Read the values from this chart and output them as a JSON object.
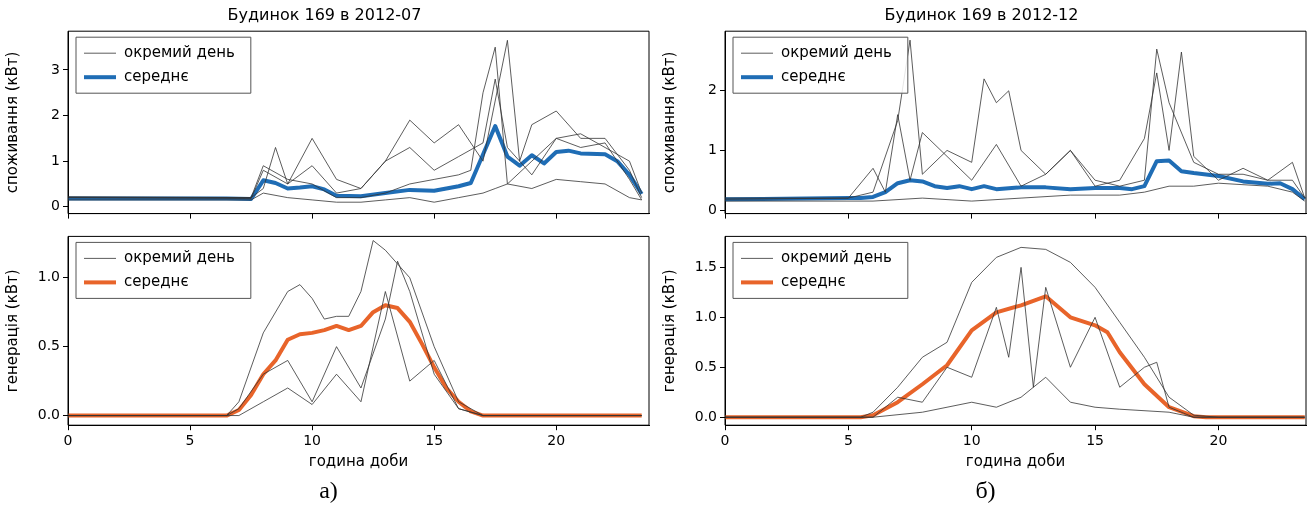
{
  "chart_data": [
    {
      "type": "line",
      "title": "Будинок 169 в 2012-07",
      "ylabel": "споживання (кВт)",
      "xlim": [
        0,
        23.8
      ],
      "xticks": [
        0,
        5,
        10,
        15,
        20
      ],
      "ylim": [
        -0.15,
        3.85
      ],
      "yticks": [
        0,
        1,
        2,
        3
      ],
      "tick_labels": "y",
      "legend": "top left",
      "grid": false,
      "series": [
        {
          "name": "окремий день",
          "color": "#333333",
          "x": [
            0,
            7.5,
            8,
            9,
            10,
            11,
            12,
            13,
            14,
            15,
            16,
            16.5,
            17,
            17.5,
            18,
            19,
            20,
            21,
            22,
            23,
            23.5
          ],
          "values": [
            0.2,
            0.2,
            0.9,
            0.6,
            0.5,
            0.2,
            0.2,
            0.3,
            0.5,
            0.6,
            0.7,
            0.8,
            2.5,
            3.5,
            0.5,
            1.0,
            1.5,
            1.3,
            1.4,
            0.6,
            0.15
          ]
        },
        {
          "color": "#333333",
          "x": [
            0,
            7.5,
            8,
            8.5,
            9,
            10,
            11,
            12,
            13,
            14,
            15,
            16,
            17,
            18,
            18.5,
            19,
            20,
            21,
            22,
            23,
            23.5
          ],
          "values": [
            0.22,
            0.2,
            0.4,
            1.3,
            0.5,
            1.5,
            0.6,
            0.4,
            1.0,
            1.9,
            1.4,
            1.8,
            1.0,
            3.65,
            1.0,
            1.8,
            2.1,
            1.5,
            1.5,
            0.8,
            0.2
          ]
        },
        {
          "color": "#333333",
          "x": [
            0,
            7.5,
            8,
            9,
            10,
            11,
            12,
            13,
            14,
            15,
            16,
            17,
            17.5,
            18,
            19,
            20,
            21,
            22,
            23,
            23.5
          ],
          "values": [
            0.15,
            0.15,
            0.3,
            0.2,
            0.15,
            0.1,
            0.1,
            0.15,
            0.2,
            0.1,
            0.2,
            0.3,
            0.4,
            0.5,
            0.4,
            0.6,
            0.55,
            0.5,
            0.2,
            0.15
          ]
        },
        {
          "color": "#333333",
          "x": [
            0,
            7.5,
            8,
            9,
            10,
            11,
            12,
            13,
            14,
            15,
            16,
            17,
            17.5,
            18,
            19,
            20,
            21,
            22,
            23,
            23.5
          ],
          "values": [
            0.2,
            0.18,
            0.8,
            0.5,
            0.9,
            0.3,
            0.4,
            1.0,
            1.3,
            0.8,
            1.1,
            1.4,
            2.8,
            1.3,
            0.7,
            1.5,
            1.6,
            1.3,
            1.0,
            0.3
          ]
        },
        {
          "name": "середнє",
          "color": "#1f6db5",
          "x": [
            0,
            6.5,
            7.5,
            8,
            8.5,
            9,
            9.5,
            10,
            10.5,
            11,
            12,
            13,
            14,
            15,
            16,
            16.5,
            17.5,
            18,
            18.5,
            19,
            19.5,
            20,
            20.5,
            21,
            22,
            22.5,
            23,
            23.5
          ],
          "values": [
            0.18,
            0.18,
            0.17,
            0.58,
            0.52,
            0.4,
            0.42,
            0.45,
            0.38,
            0.24,
            0.23,
            0.3,
            0.37,
            0.35,
            0.45,
            0.52,
            1.77,
            1.1,
            0.9,
            1.13,
            0.95,
            1.2,
            1.23,
            1.17,
            1.15,
            1.0,
            0.7,
            0.28
          ]
        }
      ]
    },
    {
      "type": "line",
      "title": "Будинок 169 в 2012-12",
      "ylabel": "споживання (кВт)",
      "xlim": [
        0,
        23.55
      ],
      "xticks": [
        0,
        5,
        10,
        15,
        20
      ],
      "ylim": [
        -0.06,
        3.0
      ],
      "yticks": [
        0,
        1,
        2
      ],
      "tick_labels": "y",
      "legend": "top left",
      "grid": false,
      "series": [
        {
          "name": "окремий день",
          "color": "#333333",
          "x": [
            0,
            5,
            6,
            7,
            7.5,
            8,
            9,
            10,
            10.5,
            11,
            11.5,
            12,
            13,
            14,
            15,
            16,
            17,
            17.5,
            18,
            19,
            20,
            21,
            22,
            23,
            23.5
          ],
          "values": [
            0.2,
            0.2,
            0.3,
            1.5,
            2.85,
            0.6,
            1.0,
            0.8,
            2.2,
            1.8,
            2.0,
            1.0,
            0.6,
            1.0,
            0.5,
            0.4,
            0.5,
            2.7,
            1.8,
            0.8,
            0.6,
            0.6,
            0.5,
            0.8,
            0.2
          ]
        },
        {
          "color": "#333333",
          "x": [
            0,
            5,
            6,
            6.5,
            7,
            7.5,
            8,
            9,
            10,
            11,
            12,
            13,
            14,
            15,
            16,
            17,
            17.5,
            18,
            18.5,
            19,
            20,
            21,
            22,
            23,
            23.5
          ],
          "values": [
            0.18,
            0.2,
            0.7,
            0.3,
            1.6,
            0.5,
            1.3,
            0.9,
            0.5,
            1.1,
            0.4,
            0.6,
            1.0,
            0.4,
            0.5,
            1.2,
            2.3,
            1.0,
            2.65,
            0.9,
            0.5,
            0.7,
            0.5,
            0.5,
            0.2
          ]
        },
        {
          "color": "#333333",
          "x": [
            0,
            6,
            8,
            10,
            12,
            14,
            16,
            17,
            18,
            19,
            20,
            22,
            23,
            23.5
          ],
          "values": [
            0.15,
            0.15,
            0.2,
            0.15,
            0.2,
            0.25,
            0.25,
            0.3,
            0.4,
            0.4,
            0.45,
            0.4,
            0.3,
            0.15
          ]
        },
        {
          "name": "середнє",
          "color": "#1f6db5",
          "x": [
            0,
            5,
            5.5,
            6,
            6.5,
            7,
            7.5,
            8,
            8.5,
            9,
            9.5,
            10,
            10.5,
            11,
            12,
            13,
            14,
            15,
            16,
            16.5,
            17,
            17.5,
            18,
            18.5,
            19,
            20,
            21,
            22,
            22.5,
            23,
            23.5
          ],
          "values": [
            0.18,
            0.2,
            0.2,
            0.22,
            0.3,
            0.45,
            0.5,
            0.48,
            0.4,
            0.37,
            0.4,
            0.35,
            0.4,
            0.35,
            0.38,
            0.38,
            0.35,
            0.37,
            0.37,
            0.35,
            0.4,
            0.82,
            0.83,
            0.65,
            0.62,
            0.57,
            0.48,
            0.44,
            0.45,
            0.35,
            0.18
          ]
        }
      ]
    },
    {
      "type": "line",
      "ylabel": "генерація (кВт)",
      "xlabel": "година доби",
      "annotations": [
        "а)"
      ],
      "xlim": [
        0,
        23.8
      ],
      "xticks": [
        0,
        5,
        10,
        15,
        20
      ],
      "ylim": [
        -0.07,
        1.3
      ],
      "yticks": [
        {
          "value": 0,
          "label": "0.0"
        },
        {
          "value": 0.5,
          "label": "0.5"
        },
        {
          "value": 1,
          "label": "1.0"
        }
      ],
      "legend": "top left",
      "grid": false,
      "series": [
        {
          "name": "окремий день",
          "color": "#333333",
          "x": [
            0,
            6.5,
            7,
            8,
            9,
            9.5,
            10,
            10.5,
            11,
            11.5,
            12,
            12.5,
            13,
            14,
            15,
            16,
            17,
            23.5
          ],
          "values": [
            0,
            0,
            0.1,
            0.6,
            0.9,
            0.95,
            0.85,
            0.7,
            0.72,
            0.72,
            0.9,
            1.27,
            1.2,
            1.0,
            0.5,
            0.1,
            0,
            0
          ]
        },
        {
          "color": "#333333",
          "x": [
            0,
            6.5,
            7,
            8,
            9,
            10,
            11,
            12,
            13,
            13.5,
            14,
            15,
            16,
            17,
            23.5
          ],
          "values": [
            0,
            0,
            0.05,
            0.3,
            0.4,
            0.1,
            0.5,
            0.2,
            0.7,
            1.12,
            0.9,
            0.3,
            0.05,
            0,
            0
          ]
        },
        {
          "color": "#333333",
          "x": [
            0,
            7,
            8,
            9,
            10,
            11,
            12,
            13,
            14,
            15,
            16,
            17,
            23.5
          ],
          "values": [
            0,
            0,
            0.1,
            0.2,
            0.08,
            0.3,
            0.1,
            0.9,
            0.25,
            0.4,
            0.05,
            0,
            0
          ]
        },
        {
          "name": "середнє",
          "color": "#e8642a",
          "x": [
            0,
            6.5,
            7,
            7.5,
            8,
            8.5,
            9,
            9.5,
            10,
            10.5,
            11,
            11.5,
            12,
            12.5,
            13,
            13.5,
            14,
            14.5,
            15,
            15.5,
            16,
            16.5,
            17,
            23.5
          ],
          "values": [
            0,
            0,
            0.04,
            0.15,
            0.3,
            0.4,
            0.55,
            0.59,
            0.6,
            0.62,
            0.65,
            0.62,
            0.65,
            0.75,
            0.8,
            0.78,
            0.68,
            0.52,
            0.35,
            0.2,
            0.1,
            0.03,
            0,
            0
          ]
        }
      ]
    },
    {
      "type": "line",
      "ylabel": "генерація (кВт)",
      "xlabel": "година доби",
      "annotations": [
        "б)"
      ],
      "xlim": [
        0,
        23.55
      ],
      "xticks": [
        0,
        5,
        10,
        15,
        20
      ],
      "ylim": [
        -0.08,
        1.81
      ],
      "yticks": [
        {
          "value": 0,
          "label": "0.0"
        },
        {
          "value": 0.5,
          "label": "0.5"
        },
        {
          "value": 1,
          "label": "1.0"
        },
        {
          "value": 1.5,
          "label": "1.5"
        }
      ],
      "legend": "top left",
      "grid": false,
      "series": [
        {
          "name": "окремий день",
          "color": "#333333",
          "x": [
            0,
            5.5,
            6,
            7,
            8,
            9,
            10,
            11,
            12,
            13,
            14,
            15,
            16,
            17,
            18,
            19,
            20,
            23.5
          ],
          "values": [
            0,
            0,
            0.05,
            0.3,
            0.6,
            0.75,
            1.35,
            1.6,
            1.7,
            1.68,
            1.55,
            1.3,
            0.95,
            0.6,
            0.2,
            0.02,
            0,
            0
          ]
        },
        {
          "color": "#333333",
          "x": [
            0,
            6,
            7,
            8,
            9,
            10,
            11,
            11.5,
            12,
            12.5,
            13,
            14,
            15,
            16,
            17,
            17.5,
            18,
            19,
            23.5
          ],
          "values": [
            0,
            0,
            0.2,
            0.15,
            0.5,
            0.4,
            1.1,
            0.6,
            1.5,
            0.3,
            1.3,
            0.5,
            1.0,
            0.3,
            0.5,
            0.55,
            0.1,
            0,
            0
          ]
        },
        {
          "color": "#333333",
          "x": [
            0,
            6,
            8,
            9,
            10,
            11,
            12,
            13,
            14,
            15,
            16,
            18,
            19,
            23.5
          ],
          "values": [
            0,
            0,
            0.05,
            0.1,
            0.15,
            0.1,
            0.2,
            0.4,
            0.15,
            0.1,
            0.08,
            0.05,
            0,
            0
          ]
        },
        {
          "name": "середнє",
          "color": "#e8642a",
          "x": [
            0,
            5.5,
            6,
            7,
            8,
            9,
            10,
            11,
            12,
            13,
            14,
            15,
            15.5,
            16,
            17,
            18,
            19,
            19.5,
            23.5
          ],
          "values": [
            0,
            0,
            0.02,
            0.15,
            0.33,
            0.52,
            0.87,
            1.05,
            1.12,
            1.21,
            1.0,
            0.92,
            0.85,
            0.65,
            0.33,
            0.1,
            0.01,
            0,
            0
          ]
        }
      ]
    }
  ]
}
